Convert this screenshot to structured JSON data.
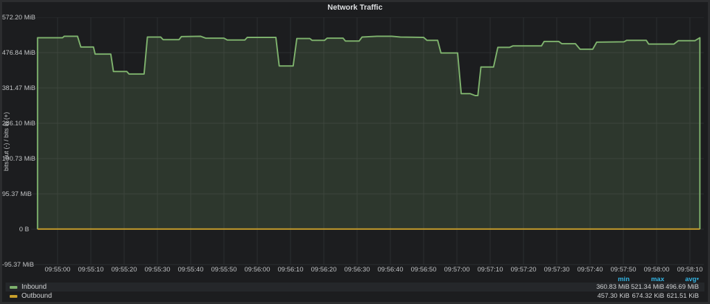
{
  "panel": {
    "title": "Network Traffic"
  },
  "chart_data": {
    "type": "area",
    "title": "Network Traffic",
    "ylabel": "bits out (-) / bits in (+)",
    "xlabel": "",
    "grid": true,
    "legend_position": "bottom",
    "x_unit": "seconds offset from 09:55:00",
    "y_unit": "MiB",
    "ylim": [
      -95.37,
      572.2
    ],
    "y_ticks": [
      "572.20 MiB",
      "476.84 MiB",
      "381.47 MiB",
      "286.10 MiB",
      "190.73 MiB",
      "95.37 MiB",
      "0 B",
      "-95.37 MiB"
    ],
    "x_ticks": [
      "09:55:00",
      "09:55:10",
      "09:55:20",
      "09:55:30",
      "09:55:40",
      "09:55:50",
      "09:56:00",
      "09:56:10",
      "09:56:20",
      "09:56:30",
      "09:56:40",
      "09:56:50",
      "09:57:00",
      "09:57:10",
      "09:57:20",
      "09:57:30",
      "09:57:40",
      "09:57:50",
      "09:58:00",
      "09:58:10"
    ],
    "series": [
      {
        "name": "Inbound",
        "color": "#7EB26D",
        "fill_opacity": 0.18,
        "unit": "MiB",
        "points": [
          [
            -6,
            517
          ],
          [
            1.5,
            517
          ],
          [
            2,
            521
          ],
          [
            6,
            521
          ],
          [
            7,
            492
          ],
          [
            10.8,
            492
          ],
          [
            11.3,
            473
          ],
          [
            16,
            473
          ],
          [
            16.8,
            426
          ],
          [
            20.8,
            426
          ],
          [
            21.5,
            419
          ],
          [
            26,
            419
          ],
          [
            27,
            519
          ],
          [
            31,
            519
          ],
          [
            31.7,
            512
          ],
          [
            36.5,
            512
          ],
          [
            37.2,
            520
          ],
          [
            43,
            521
          ],
          [
            44.5,
            516
          ],
          [
            50,
            516
          ],
          [
            51,
            511
          ],
          [
            56.3,
            511
          ],
          [
            57,
            518
          ],
          [
            65.6,
            518
          ],
          [
            66.6,
            441
          ],
          [
            70.8,
            441
          ],
          [
            71.9,
            515
          ],
          [
            75.8,
            515
          ],
          [
            76.5,
            510
          ],
          [
            80.2,
            510
          ],
          [
            81,
            516
          ],
          [
            85.8,
            516
          ],
          [
            86.5,
            508
          ],
          [
            90.6,
            508
          ],
          [
            91.5,
            519
          ],
          [
            96,
            521
          ],
          [
            100.4,
            521
          ],
          [
            103,
            519
          ],
          [
            110,
            518
          ],
          [
            111,
            510
          ],
          [
            114.2,
            510
          ],
          [
            115.2,
            476
          ],
          [
            120.2,
            476
          ],
          [
            121.3,
            366
          ],
          [
            124,
            366
          ],
          [
            125.5,
            361
          ],
          [
            126.3,
            361
          ],
          [
            127.2,
            438
          ],
          [
            131,
            438
          ],
          [
            132.3,
            491
          ],
          [
            135.8,
            491
          ],
          [
            136.8,
            495
          ],
          [
            145.4,
            495
          ],
          [
            146.2,
            507
          ],
          [
            150.6,
            507
          ],
          [
            151.5,
            501
          ],
          [
            155.6,
            501
          ],
          [
            157,
            486
          ],
          [
            160.8,
            486
          ],
          [
            162,
            505
          ],
          [
            170.2,
            506
          ],
          [
            171,
            510
          ],
          [
            176.9,
            510
          ],
          [
            177.6,
            500
          ],
          [
            185.2,
            500
          ],
          [
            186.5,
            509
          ],
          [
            191.5,
            509
          ],
          [
            193,
            517
          ]
        ]
      },
      {
        "name": "Outbound",
        "color": "#C9A02B",
        "fill_opacity": 0,
        "unit": "MiB",
        "points": [
          [
            -6,
            0.62
          ],
          [
            193,
            0.62
          ]
        ]
      }
    ]
  },
  "legend": {
    "headers": [
      "min",
      "max",
      "avg"
    ],
    "sort": {
      "column": "avg",
      "indicator": "▾"
    },
    "rows": [
      {
        "name": "Inbound",
        "color": "#7EB26D",
        "min": "360.83 MiB",
        "max": "521.34 MiB",
        "avg": "496.69 MiB"
      },
      {
        "name": "Outbound",
        "color": "#C9A02B",
        "min": "457.30 KiB",
        "max": "674.32 KiB",
        "avg": "621.51 KiB"
      }
    ]
  }
}
